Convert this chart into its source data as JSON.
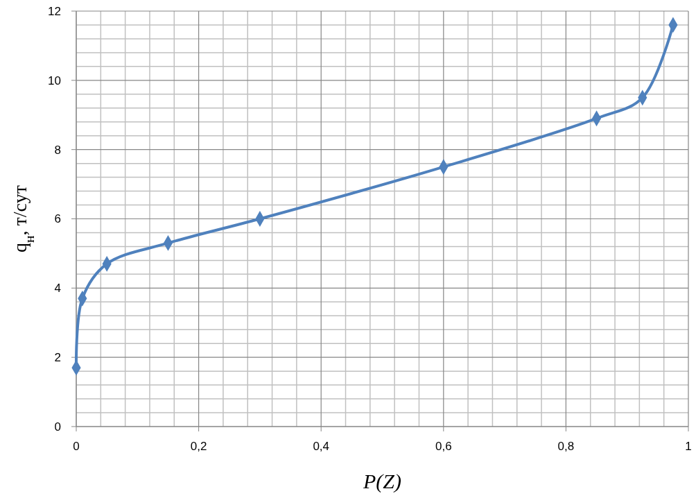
{
  "chart_data": {
    "type": "line",
    "xlabel": "P(Z)",
    "ylabel": "q$_{н}$, т/сут",
    "x": [
      0,
      0.01,
      0.05,
      0.15,
      0.3,
      0.6,
      0.85,
      0.925,
      0.975
    ],
    "series": [
      {
        "color": "#4f81bd",
        "values": [
          1.7,
          3.7,
          4.7,
          5.3,
          6,
          7.5,
          8.9,
          9.5,
          11.6
        ]
      }
    ],
    "xlim": [
      0,
      1
    ],
    "ylim": [
      0,
      12
    ],
    "xticks": [
      0,
      {
        "value": 0.2,
        "label": "0,2"
      },
      {
        "value": 0.4,
        "label": "0,4"
      },
      {
        "value": 0.6,
        "label": "0,6"
      },
      {
        "value": 0.8,
        "label": "0,8"
      },
      1
    ],
    "yticks": [
      0,
      2,
      4,
      6,
      8,
      10,
      12
    ],
    "grid": true,
    "marker": "diamond",
    "line_style": "solid"
  }
}
